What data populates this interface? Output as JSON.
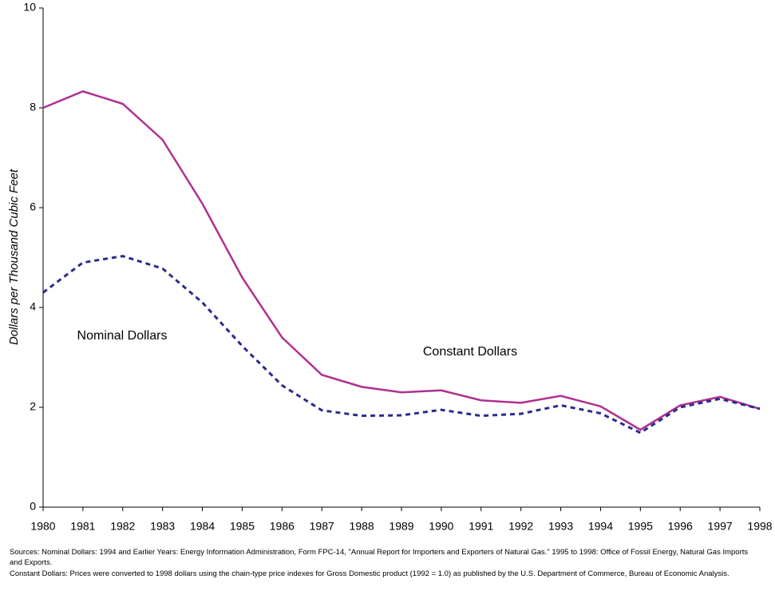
{
  "chart_data": {
    "type": "line",
    "y_label": "Dollars per Thousand Cubic Feet",
    "x": [
      1980,
      1981,
      1982,
      1983,
      1984,
      1985,
      1986,
      1987,
      1988,
      1989,
      1990,
      1991,
      1992,
      1993,
      1994,
      1995,
      1996,
      1997,
      1998
    ],
    "series": [
      {
        "name": "Constant Dollars",
        "color": "#b0308f",
        "dashed": false,
        "values": [
          8.0,
          8.33,
          8.08,
          7.36,
          6.08,
          4.6,
          3.4,
          2.65,
          2.41,
          2.3,
          2.34,
          2.14,
          2.09,
          2.23,
          2.02,
          1.55,
          2.04,
          2.21,
          1.97
        ]
      },
      {
        "name": "Nominal Dollars",
        "color": "#2b2b8c",
        "dashed": true,
        "values": [
          4.3,
          4.9,
          5.03,
          4.78,
          4.1,
          3.23,
          2.44,
          1.94,
          1.83,
          1.84,
          1.95,
          1.83,
          1.87,
          2.04,
          1.88,
          1.49,
          2.0,
          2.17,
          1.97
        ]
      }
    ],
    "xlim": [
      1980,
      1998
    ],
    "xticks": [
      1980,
      1981,
      1982,
      1983,
      1984,
      1985,
      1986,
      1987,
      1988,
      1989,
      1990,
      1991,
      1992,
      1993,
      1994,
      1995,
      1996,
      1997,
      1998
    ],
    "ylim": [
      0,
      10
    ],
    "yticks": [
      0,
      2,
      4,
      6,
      8,
      10
    ],
    "grid": false,
    "notes": [
      "Sources: Nominal Dollars: 1994 and Earlier Years: Energy Information Administration, Form FPC-14, \"Annual Report for Importers and Exporters of Natural Gas.\" 1995 to 1998: Office of Fossil Energy, Natural Gas Imports and Exports.",
      "Constant Dollars: Prices were converted to 1998 dollars using the chain-type price indexes for Gross Domestic product (1992 = 1.0) as published by the U.S. Department of Commerce, Bureau of Economic Analysis."
    ]
  }
}
